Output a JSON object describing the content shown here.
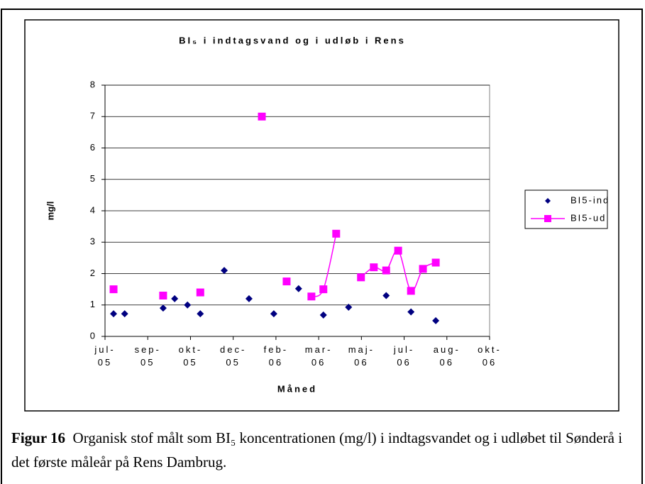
{
  "chart_data": {
    "type": "scatter",
    "title": "BI₅ i indtagsvand og i udløb i Rens",
    "xlabel": "Måned",
    "ylabel": "mg/l",
    "xlim": [
      0,
      9
    ],
    "ylim": [
      0,
      8
    ],
    "yticks": [
      0,
      1,
      2,
      3,
      4,
      5,
      6,
      7,
      8
    ],
    "grid": true,
    "legend": "right",
    "xticks": [
      {
        "value": 0,
        "label": "jul-05"
      },
      {
        "value": 1,
        "label": "sep-05"
      },
      {
        "value": 2,
        "label": "okt-05"
      },
      {
        "value": 3,
        "label": "dec-05"
      },
      {
        "value": 4,
        "label": "feb-06"
      },
      {
        "value": 5,
        "label": "mar-06"
      },
      {
        "value": 6,
        "label": "maj-06"
      },
      {
        "value": 7,
        "label": "jul-06"
      },
      {
        "value": 8,
        "label": "aug-06"
      },
      {
        "value": 9,
        "label": "okt-06"
      }
    ],
    "series": [
      {
        "name": "BI5-ind",
        "color": "#000080",
        "marker": "diamond",
        "line": false,
        "x": [
          0.2,
          0.46,
          1.36,
          1.63,
          1.93,
          2.23,
          2.79,
          3.37,
          3.95,
          4.53,
          5.11,
          5.7,
          6.58,
          7.16,
          7.74
        ],
        "values": [
          0.72,
          0.72,
          0.9,
          1.2,
          1.0,
          0.72,
          2.1,
          1.2,
          0.72,
          1.52,
          0.68,
          0.93,
          1.3,
          0.78,
          0.5
        ]
      },
      {
        "name": "BI5-ud",
        "color": "#ff00ff",
        "marker": "square",
        "line": true,
        "x": [
          0.2,
          null,
          1.36,
          null,
          2.23,
          null,
          3.67,
          null,
          4.25,
          null,
          4.83,
          5.11,
          5.41,
          null,
          5.99,
          6.29,
          6.58,
          6.86,
          7.16,
          7.44,
          7.74
        ],
        "values": [
          1.5,
          null,
          1.3,
          null,
          1.4,
          null,
          7.0,
          null,
          1.75,
          null,
          1.27,
          1.5,
          3.27,
          null,
          1.88,
          2.2,
          2.1,
          2.73,
          1.45,
          2.15,
          2.35
        ]
      }
    ]
  },
  "caption": {
    "label": "Figur 16",
    "text": "Organisk stof målt som BI₅ koncentrationen (mg/l) i indtagsvandet og i udløbet til Sønderå i det første måleår på Rens Dambrug."
  }
}
